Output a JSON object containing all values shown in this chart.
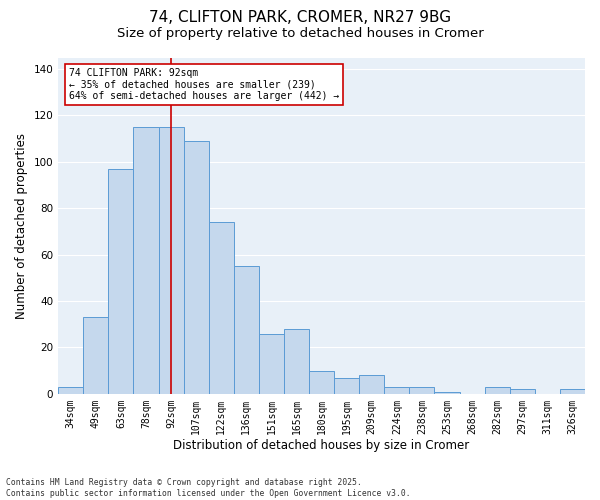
{
  "title1": "74, CLIFTON PARK, CROMER, NR27 9BG",
  "title2": "Size of property relative to detached houses in Cromer",
  "xlabel": "Distribution of detached houses by size in Cromer",
  "ylabel": "Number of detached properties",
  "categories": [
    "34sqm",
    "49sqm",
    "63sqm",
    "78sqm",
    "92sqm",
    "107sqm",
    "122sqm",
    "136sqm",
    "151sqm",
    "165sqm",
    "180sqm",
    "195sqm",
    "209sqm",
    "224sqm",
    "238sqm",
    "253sqm",
    "268sqm",
    "282sqm",
    "297sqm",
    "311sqm",
    "326sqm"
  ],
  "values": [
    3,
    33,
    97,
    115,
    115,
    109,
    74,
    55,
    26,
    28,
    10,
    7,
    8,
    3,
    3,
    1,
    0,
    3,
    2,
    0,
    2
  ],
  "bar_color": "#c5d8ed",
  "bar_edge_color": "#5b9bd5",
  "background_color": "#e8f0f8",
  "grid_color": "#ffffff",
  "vline_x": 4,
  "vline_color": "#cc0000",
  "annotation_text": "74 CLIFTON PARK: 92sqm\n← 35% of detached houses are smaller (239)\n64% of semi-detached houses are larger (442) →",
  "annotation_box_color": "#cc0000",
  "ylim": [
    0,
    145
  ],
  "yticks": [
    0,
    20,
    40,
    60,
    80,
    100,
    120,
    140
  ],
  "footnote": "Contains HM Land Registry data © Crown copyright and database right 2025.\nContains public sector information licensed under the Open Government Licence v3.0.",
  "title_fontsize": 11,
  "subtitle_fontsize": 9.5,
  "label_fontsize": 8.5,
  "tick_fontsize": 7,
  "annot_fontsize": 7
}
